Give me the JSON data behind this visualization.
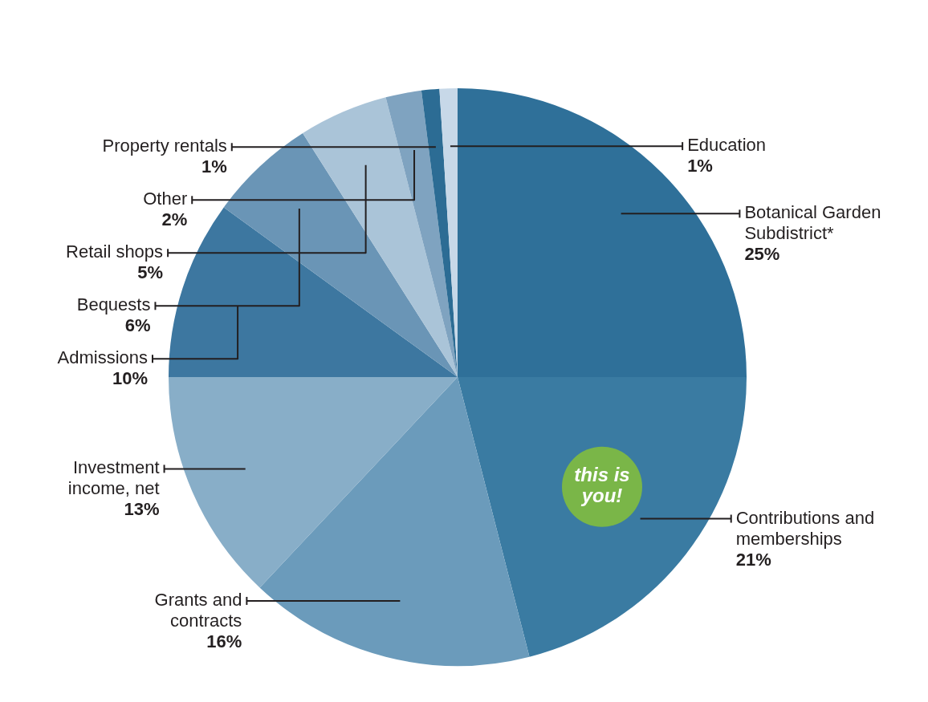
{
  "chart_data": {
    "type": "pie",
    "categories": [
      "Botanical Garden Subdistrict*",
      "Contributions and memberships",
      "Grants and contracts",
      "Investment income, net",
      "Admissions",
      "Bequests",
      "Retail shops",
      "Other",
      "Property rentals",
      "Education"
    ],
    "values": [
      25,
      21,
      16,
      13,
      10,
      6,
      5,
      2,
      1,
      1
    ],
    "colors": [
      "#2f7099",
      "#3a7ba2",
      "#6b9bbb",
      "#88aec8",
      "#3d77a0",
      "#6a95b6",
      "#aac4d8",
      "#7fa3c0",
      "#2c6c94",
      "#c7d8e8"
    ],
    "value_labels": [
      "25%",
      "21%",
      "16%",
      "13%",
      "10%",
      "6%",
      "5%",
      "2%",
      "1%",
      "1%"
    ],
    "legend": false,
    "annotations": [
      "this is you!"
    ]
  }
}
